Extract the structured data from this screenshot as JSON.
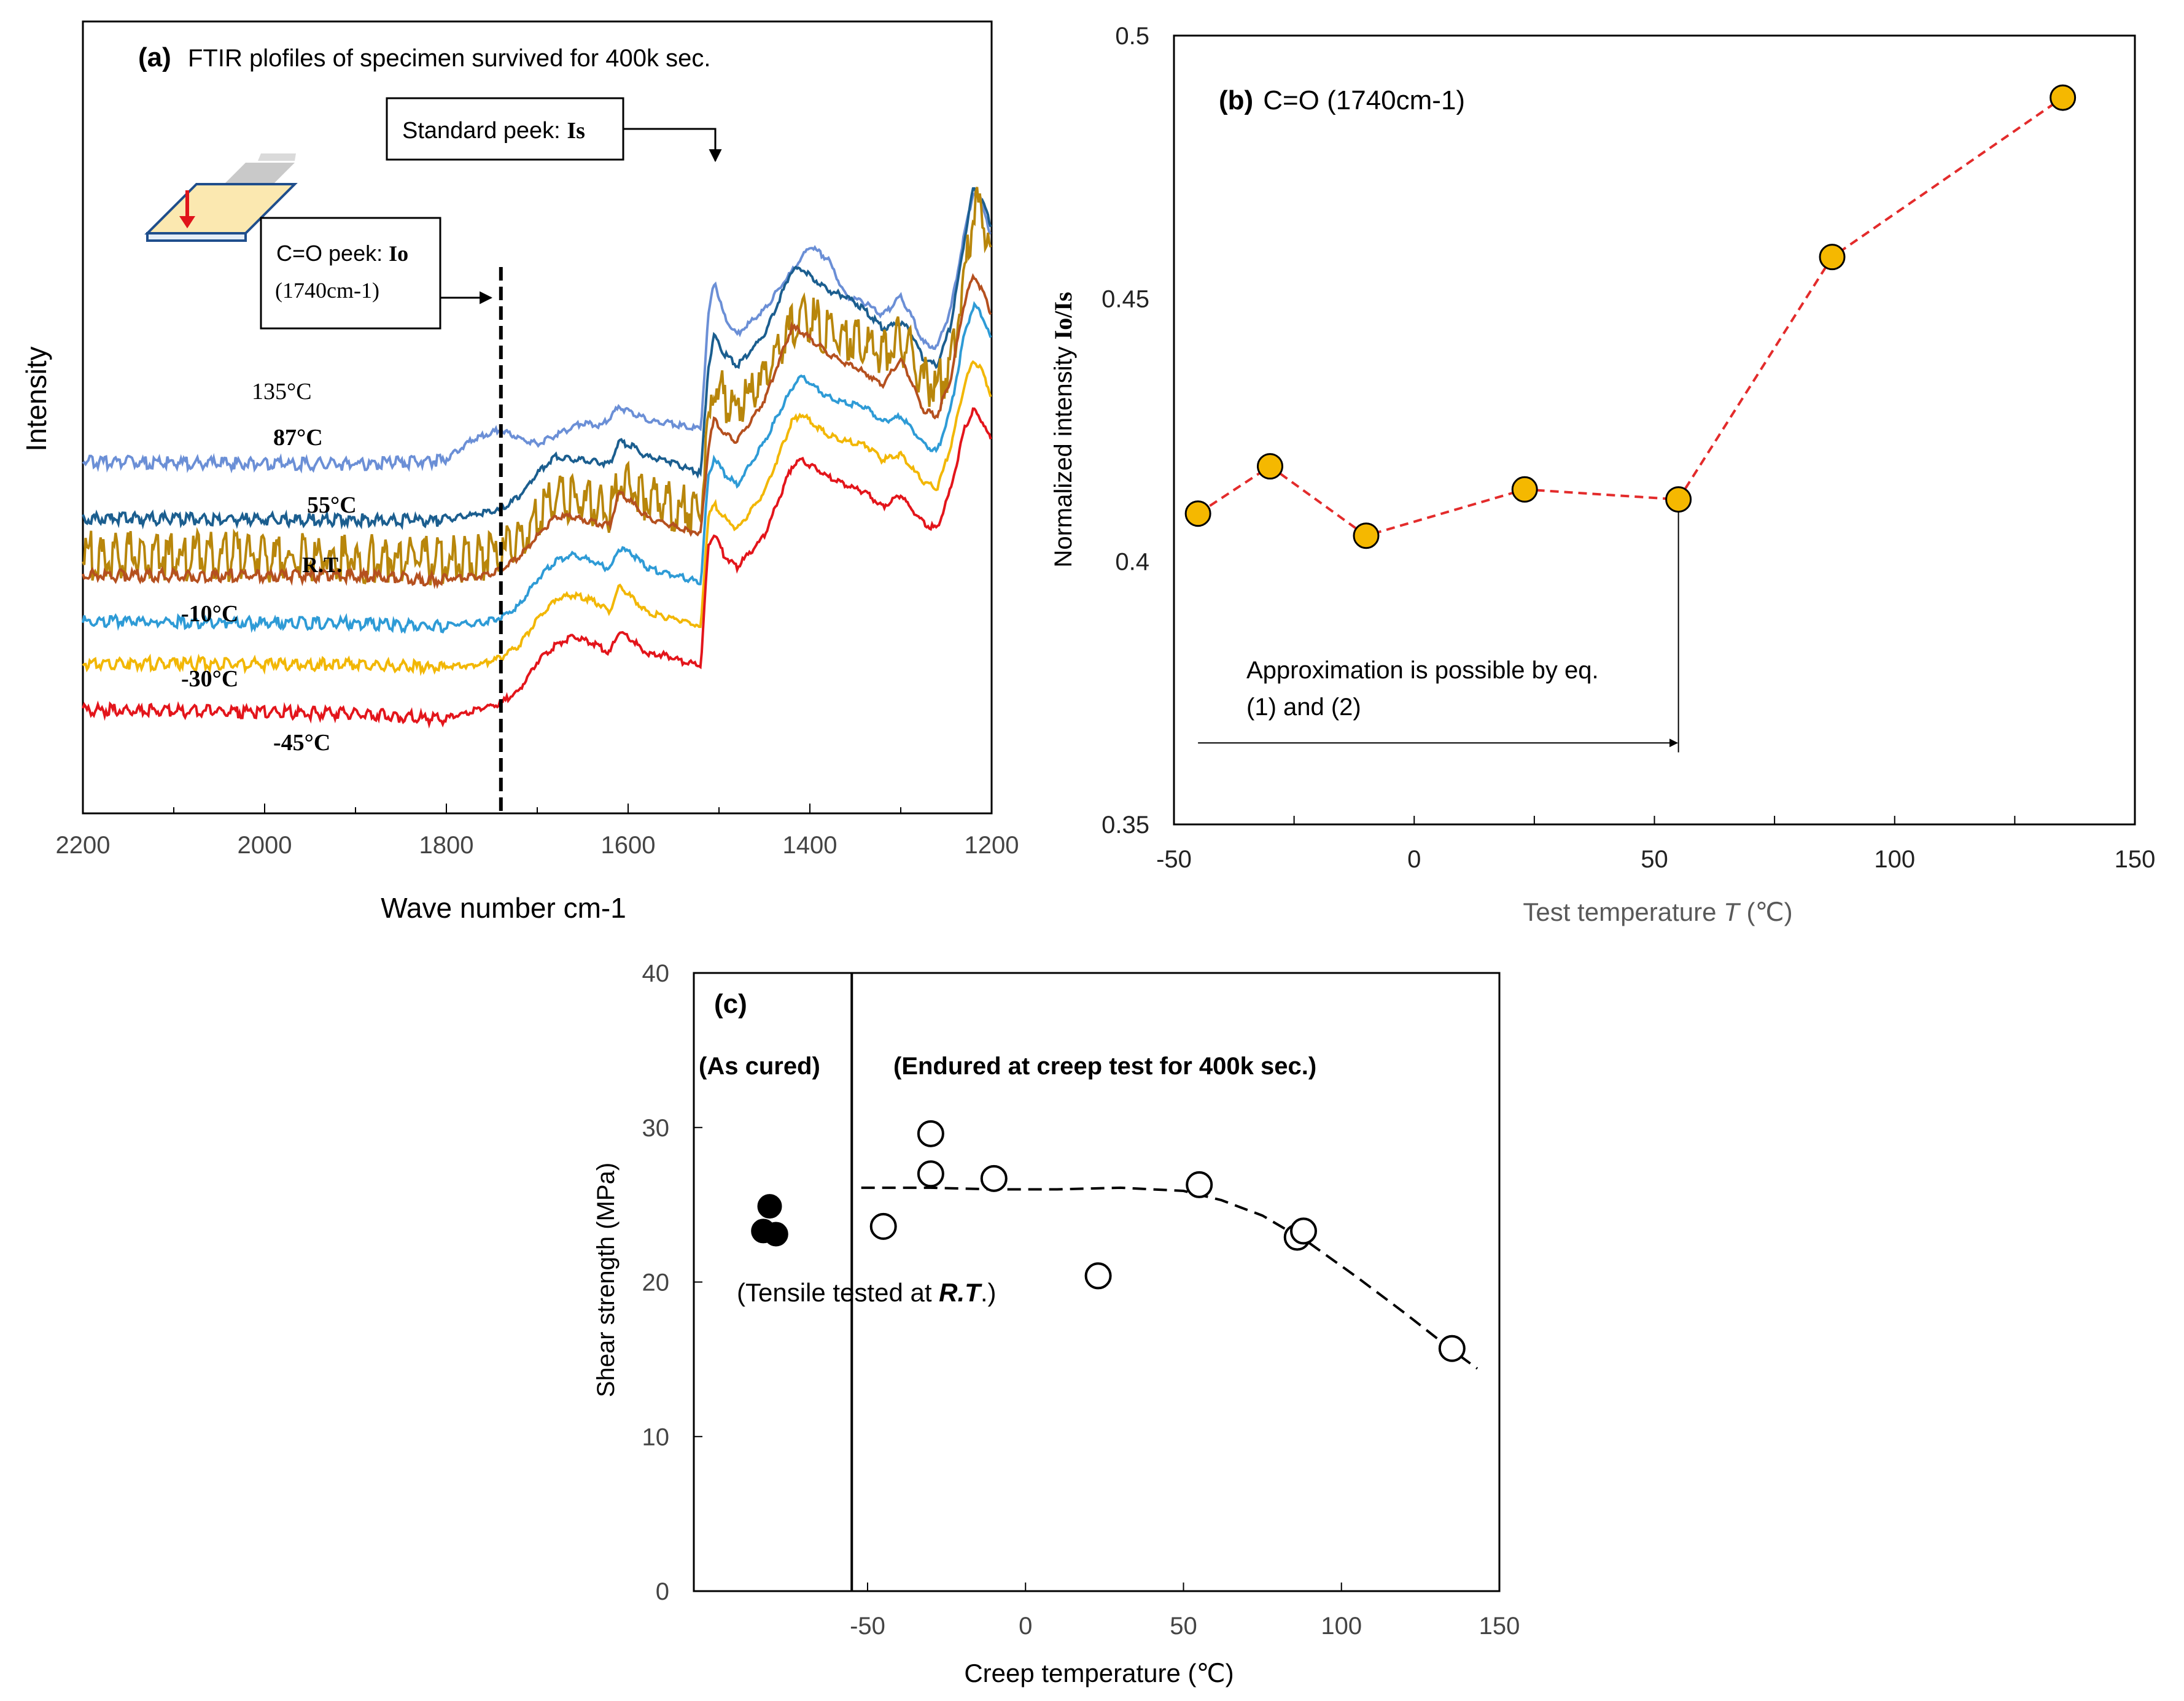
{
  "chart_data": [
    {
      "id": "a",
      "type": "line",
      "panel_label": "(a)",
      "title": "FTIR plofiles of specimen survived for 400k sec.",
      "xlabel": "Wave number cm-1",
      "ylabel": "Intensity",
      "xlim": [
        2200,
        1200
      ],
      "x_reversed": true,
      "xticks": [
        2200,
        2000,
        1800,
        1600,
        1400,
        1200
      ],
      "xtick_labels": [
        "2200",
        "2000",
        "1800",
        "1600",
        "1400",
        "1200"
      ],
      "y_units": "arbitrary (stacked spectra)",
      "annotations": {
        "standard_peak": "Standard peek: ",
        "standard_peak_symbol": "Is",
        "co_peak": "C=O peek: ",
        "co_peak_symbol": "Io",
        "co_peak_wavenumber": "(1740cm-1)",
        "co_peak_x": 1740,
        "standard_peak_x": 1510
      },
      "series": [
        {
          "name": "135°C",
          "color": "#6B8FD6",
          "x": [
            2200,
            1900,
            1800,
            1770,
            1740,
            1715,
            1700,
            1680,
            1650,
            1630,
            1610,
            1595,
            1575,
            1555,
            1540,
            1520,
            1512,
            1505,
            1495,
            1480,
            1450,
            1420,
            1400,
            1380,
            1360,
            1340,
            1320,
            1300,
            1290,
            1275,
            1260,
            1245,
            1230,
            1220,
            1210,
            1200
          ],
          "values": [
            0.55,
            0.53,
            0.56,
            0.72,
            0.8,
            0.71,
            0.68,
            0.75,
            0.85,
            0.82,
            0.97,
            0.92,
            0.86,
            0.85,
            0.82,
            0.8,
            1.68,
            1.98,
            1.7,
            1.55,
            1.75,
            2.05,
            2.25,
            2.15,
            1.85,
            1.8,
            1.7,
            1.85,
            1.72,
            1.48,
            1.45,
            1.75,
            2.35,
            2.68,
            2.6,
            2.3
          ]
        },
        {
          "name": "87°C",
          "color": "#1B5E8F",
          "x": [
            2200,
            1900,
            1800,
            1760,
            1740,
            1720,
            1700,
            1680,
            1660,
            1640,
            1620,
            1610,
            1595,
            1580,
            1560,
            1540,
            1520,
            1512,
            1505,
            1495,
            1480,
            1450,
            1420,
            1410,
            1380,
            1360,
            1340,
            1320,
            1300,
            1290,
            1275,
            1260,
            1245,
            1230,
            1220,
            1210,
            1200
          ],
          "values": [
            0.1,
            0.09,
            0.08,
            0.13,
            0.16,
            0.26,
            0.45,
            0.58,
            0.56,
            0.54,
            0.52,
            0.7,
            0.66,
            0.58,
            0.55,
            0.5,
            0.44,
            1.28,
            1.55,
            1.4,
            1.3,
            1.55,
            2.06,
            2.08,
            1.9,
            1.85,
            1.75,
            1.6,
            1.64,
            1.58,
            1.35,
            1.3,
            1.62,
            2.3,
            2.72,
            2.6,
            2.4
          ]
        },
        {
          "name": "55°C",
          "color": "#B8860B",
          "x": [
            2200,
            1900,
            1800,
            1760,
            1740,
            1720,
            1700,
            1680,
            1660,
            1640,
            1620,
            1610,
            1595,
            1580,
            1560,
            1540,
            1520,
            1512,
            1505,
            1495,
            1480,
            1450,
            1420,
            1400,
            1380,
            1360,
            1340,
            1320,
            1300,
            1290,
            1275,
            1260,
            1245,
            1230,
            1220,
            1210,
            1200
          ],
          "values": [
            -0.12,
            -0.14,
            -0.16,
            -0.14,
            -0.1,
            0.0,
            0.18,
            0.35,
            0.33,
            0.28,
            0.25,
            0.5,
            0.42,
            0.34,
            0.29,
            0.25,
            0.22,
            0.85,
            1.25,
            1.15,
            1.05,
            1.25,
            1.7,
            1.78,
            1.65,
            1.62,
            1.6,
            1.5,
            1.6,
            1.5,
            1.28,
            1.22,
            1.4,
            2.1,
            2.65,
            2.55,
            2.3
          ]
        },
        {
          "name": "R.T.",
          "color": "#B5501F",
          "x": [
            2200,
            1900,
            1800,
            1760,
            1740,
            1720,
            1700,
            1680,
            1660,
            1640,
            1620,
            1610,
            1595,
            1580,
            1560,
            1540,
            1520,
            1512,
            1505,
            1495,
            1480,
            1450,
            1420,
            1410,
            1380,
            1360,
            1340,
            1320,
            1300,
            1290,
            1275,
            1260,
            1245,
            1230,
            1220,
            1210,
            1200
          ],
          "values": [
            -0.35,
            -0.36,
            -0.39,
            -0.37,
            -0.32,
            -0.22,
            -0.05,
            0.1,
            0.1,
            0.06,
            0.03,
            0.29,
            0.21,
            0.1,
            0.05,
            0.0,
            -0.03,
            0.65,
            0.88,
            0.76,
            0.7,
            1.03,
            1.6,
            1.58,
            1.4,
            1.32,
            1.25,
            1.15,
            1.35,
            1.2,
            0.95,
            0.9,
            1.2,
            1.8,
            2.02,
            1.9,
            1.7
          ]
        },
        {
          "name": "-10°C",
          "color": "#2E9BD6",
          "x": [
            2200,
            1900,
            1800,
            1760,
            1740,
            1720,
            1700,
            1680,
            1660,
            1640,
            1620,
            1610,
            1595,
            1580,
            1560,
            1540,
            1520,
            1512,
            1505,
            1495,
            1480,
            1450,
            1420,
            1410,
            1380,
            1360,
            1340,
            1320,
            1300,
            1290,
            1275,
            1260,
            1245,
            1230,
            1220,
            1210,
            1200
          ],
          "values": [
            -0.72,
            -0.73,
            -0.76,
            -0.74,
            -0.7,
            -0.6,
            -0.4,
            -0.25,
            -0.2,
            -0.25,
            -0.32,
            -0.15,
            -0.2,
            -0.3,
            -0.35,
            -0.38,
            -0.42,
            0.4,
            0.58,
            0.45,
            0.35,
            0.7,
            1.12,
            1.22,
            1.05,
            1.0,
            0.98,
            0.85,
            0.9,
            0.82,
            0.68,
            0.62,
            0.95,
            1.55,
            1.78,
            1.7,
            1.5
          ]
        },
        {
          "name": "-30°C",
          "color": "#F2B705",
          "x": [
            2200,
            1900,
            1800,
            1760,
            1740,
            1720,
            1700,
            1680,
            1660,
            1640,
            1620,
            1610,
            1595,
            1580,
            1560,
            1540,
            1520,
            1512,
            1505,
            1495,
            1480,
            1450,
            1420,
            1410,
            1380,
            1360,
            1340,
            1320,
            1300,
            1290,
            1275,
            1260,
            1245,
            1230,
            1220,
            1210,
            1200
          ],
          "values": [
            -1.05,
            -1.06,
            -1.09,
            -1.07,
            -1.02,
            -0.92,
            -0.72,
            -0.55,
            -0.52,
            -0.56,
            -0.65,
            -0.45,
            -0.55,
            -0.65,
            -0.7,
            -0.72,
            -0.78,
            0.1,
            0.2,
            0.1,
            0.0,
            0.3,
            0.85,
            0.92,
            0.75,
            0.7,
            0.68,
            0.55,
            0.6,
            0.5,
            0.38,
            0.32,
            0.65,
            1.15,
            1.35,
            1.25,
            1.05
          ]
        },
        {
          "name": "-45°C",
          "color": "#E3151B",
          "x": [
            2200,
            1900,
            1800,
            1760,
            1740,
            1720,
            1700,
            1680,
            1660,
            1640,
            1620,
            1610,
            1595,
            1580,
            1560,
            1540,
            1520,
            1512,
            1505,
            1495,
            1480,
            1450,
            1420,
            1410,
            1380,
            1360,
            1340,
            1320,
            1300,
            1290,
            1275,
            1260,
            1245,
            1230,
            1220,
            1210,
            1200
          ],
          "values": [
            -1.42,
            -1.45,
            -1.5,
            -1.42,
            -1.38,
            -1.28,
            -1.05,
            -0.92,
            -0.85,
            -0.9,
            -0.98,
            -0.8,
            -0.88,
            -0.98,
            -1.0,
            -1.05,
            -1.08,
            -0.15,
            -0.02,
            -0.2,
            -0.3,
            -0.05,
            0.5,
            0.56,
            0.42,
            0.35,
            0.3,
            0.18,
            0.28,
            0.18,
            0.05,
            0.0,
            0.32,
            0.8,
            0.95,
            0.85,
            0.7
          ]
        }
      ],
      "series_labels": [
        {
          "text": "135°C",
          "bold": false
        },
        {
          "text": "87°C",
          "bold": true
        },
        {
          "text": "55°C",
          "bold": true
        },
        {
          "text": "R.T.",
          "bold": true
        },
        {
          "text": "-10°C",
          "bold": true
        },
        {
          "text": "-30°C",
          "bold": true
        },
        {
          "text": "-45°C",
          "bold": true
        }
      ]
    },
    {
      "id": "b",
      "type": "scatter",
      "panel_label": "(b)",
      "title": "C=O (1740cm-1)",
      "xlabel": "Test temperature ",
      "xlabel_var": "T",
      "xlabel_unit": " (℃)",
      "ylabel": "Normalized intensity ",
      "ylabel_symbol": "Io/Is",
      "xlim": [
        -50,
        150
      ],
      "ylim": [
        0.35,
        0.5
      ],
      "xticks": [
        -50,
        0,
        50,
        100,
        150
      ],
      "xtick_labels": [
        "-50",
        "0",
        "50",
        "100",
        "150"
      ],
      "yticks": [
        0.35,
        0.4,
        0.45,
        0.5
      ],
      "ytick_labels": [
        "0.35",
        "0.4",
        "0.45",
        "0.5"
      ],
      "marker_color": "#F5B800",
      "line_color": "#E32B2B",
      "x": [
        -45,
        -30,
        -10,
        23,
        55,
        87,
        135
      ],
      "values": [
        0.4091,
        0.4181,
        0.4049,
        0.4137,
        0.4118,
        0.4579,
        0.4882
      ],
      "annotation_line1": "Approximation is possible by eq.",
      "annotation_line2": "(1) and (2)",
      "annotation_arrow_from": -45,
      "annotation_arrow_to": 55
    },
    {
      "id": "c",
      "type": "scatter",
      "panel_label": "(c)",
      "xlabel": "Creep temperature (℃)",
      "ylabel": "Shear strength (MPa)",
      "xlim": [
        -105,
        150
      ],
      "ylim": [
        0,
        40
      ],
      "xticks": [
        -50,
        0,
        50,
        100,
        150
      ],
      "xtick_labels": [
        "-50",
        "0",
        "50",
        "100",
        "150"
      ],
      "yticks": [
        0,
        10,
        20,
        30,
        40
      ],
      "ytick_labels": [
        "0",
        "10",
        "20",
        "30",
        "40"
      ],
      "divider_x": -55,
      "region_left_label": "(As cured)",
      "region_right_label": "(Endured at creep test for 400k sec.)",
      "note_prefix": "(Tensile tested at ",
      "note_emph": "R.T",
      "note_suffix": ".)",
      "as_cured": {
        "x": [
          -81,
          -83,
          -79
        ],
        "values": [
          24.9,
          23.3,
          23.1
        ]
      },
      "creep": {
        "x": [
          -45,
          -30,
          -30,
          -10,
          23,
          55,
          86,
          88,
          135
        ],
        "values": [
          23.6,
          29.6,
          27.0,
          26.7,
          20.4,
          26.3,
          22.9,
          23.3,
          15.7
        ]
      },
      "trend": {
        "x": [
          -52,
          -30,
          -10,
          10,
          30,
          50,
          62,
          75,
          90,
          105,
          120,
          135,
          143
        ],
        "values": [
          26.1,
          26.1,
          26.0,
          26.0,
          26.1,
          25.9,
          25.3,
          24.3,
          22.5,
          20.3,
          18.0,
          15.6,
          14.4
        ]
      }
    }
  ]
}
